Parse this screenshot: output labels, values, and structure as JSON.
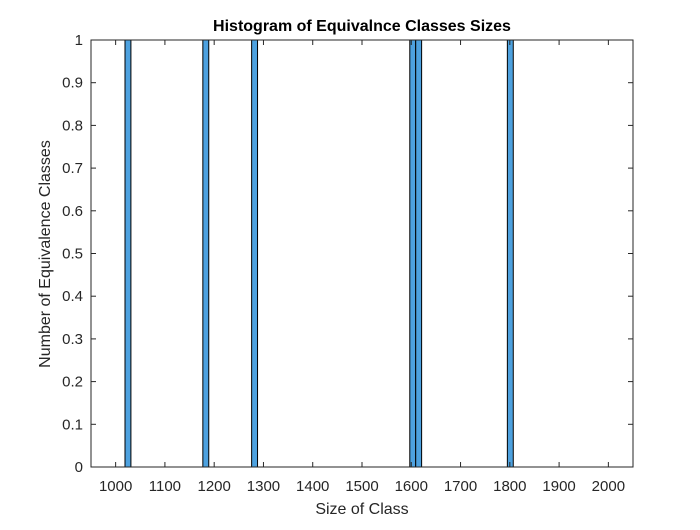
{
  "chart_data": {
    "type": "bar",
    "title": "Histogram of Equivalnce Classes Sizes",
    "xlabel": "Size of Class",
    "ylabel": "Number of Equivalence Classes",
    "xlim": [
      950,
      2050
    ],
    "ylim": [
      0,
      1
    ],
    "x_ticks": [
      1000,
      1100,
      1200,
      1300,
      1400,
      1500,
      1600,
      1700,
      1800,
      1900,
      2000
    ],
    "x_tick_labels": [
      "1000",
      "1100",
      "1200",
      "1300",
      "1400",
      "1500",
      "1600",
      "1700",
      "1800",
      "1900",
      "2000"
    ],
    "y_ticks": [
      0,
      0.1,
      0.2,
      0.3,
      0.4,
      0.5,
      0.6,
      0.7,
      0.8,
      0.9,
      1
    ],
    "y_tick_labels": [
      "0",
      "0.1",
      "0.2",
      "0.3",
      "0.4",
      "0.5",
      "0.6",
      "0.7",
      "0.8",
      "0.9",
      "1"
    ],
    "bars": [
      {
        "x_start": 1019,
        "x_end": 1031,
        "value": 1
      },
      {
        "x_start": 1177,
        "x_end": 1189,
        "value": 1
      },
      {
        "x_start": 1276,
        "x_end": 1288,
        "value": 1
      },
      {
        "x_start": 1597,
        "x_end": 1609,
        "value": 1
      },
      {
        "x_start": 1609,
        "x_end": 1621,
        "value": 1
      },
      {
        "x_start": 1795,
        "x_end": 1807,
        "value": 1
      }
    ],
    "bar_color": "#4DA1DF",
    "edge_color": "#000000",
    "grid": false,
    "box": true
  }
}
